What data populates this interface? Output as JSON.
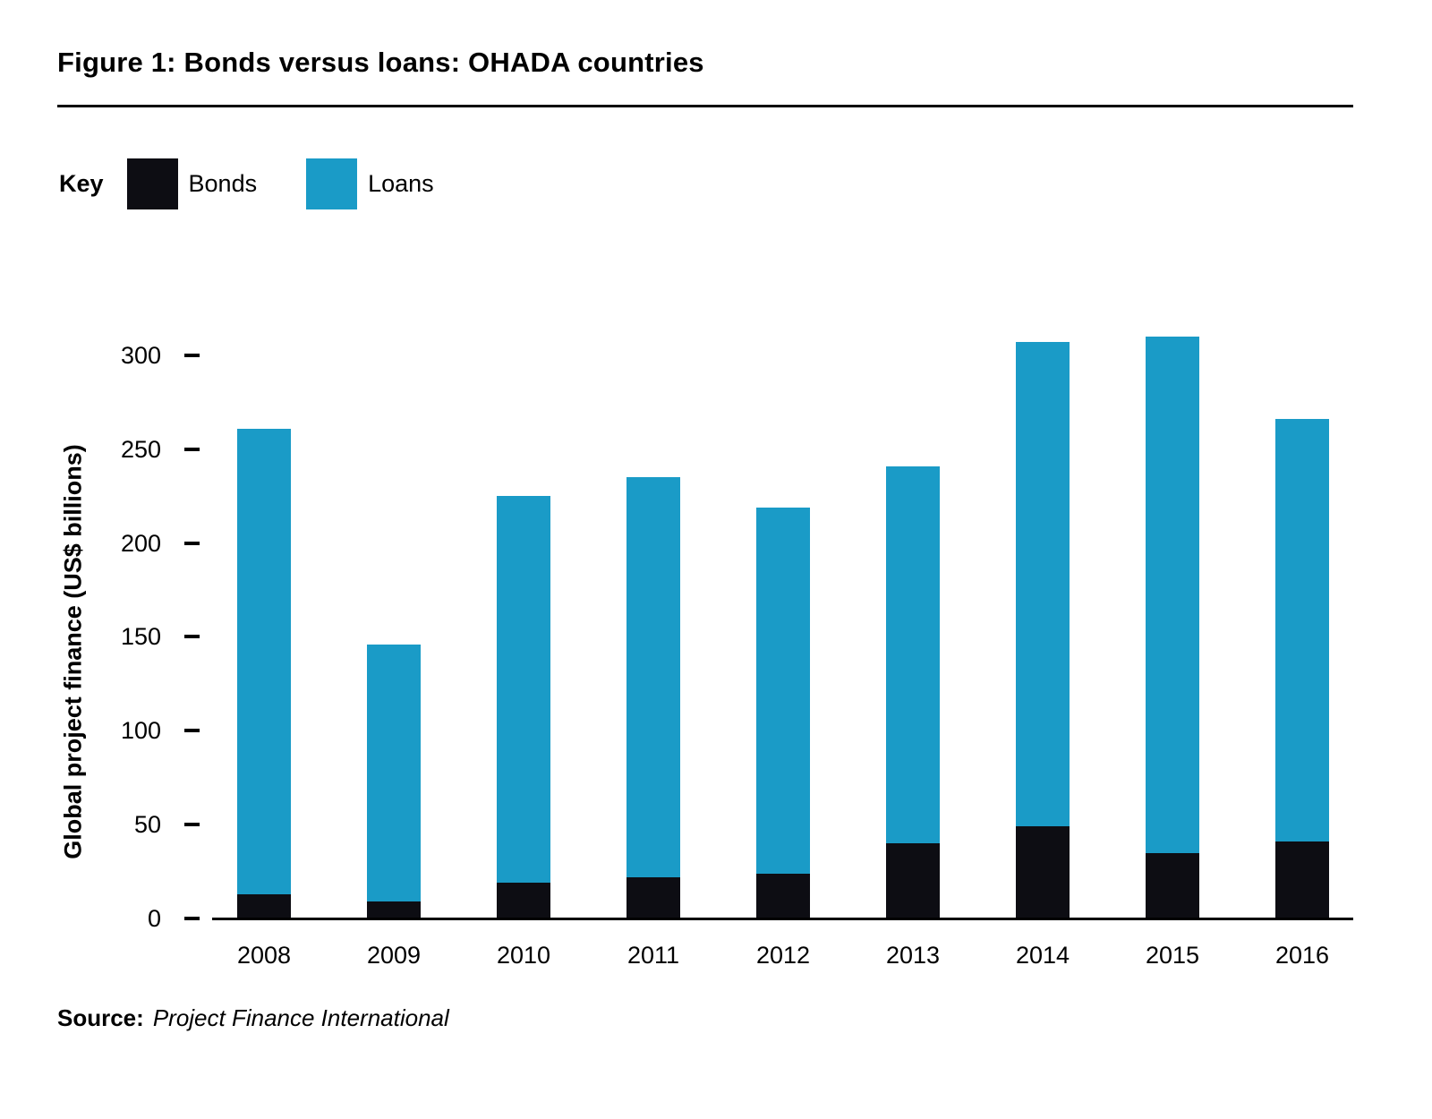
{
  "figure": {
    "title": "Figure 1: Bonds versus loans: OHADA countries",
    "key_label": "Key",
    "source_label": "Source:",
    "source_text": "Project Finance International"
  },
  "chart_data": {
    "type": "bar",
    "stacked": true,
    "title": "Figure 1: Bonds versus loans: OHADA countries",
    "xlabel": "",
    "ylabel": "Global project finance (US$ billions)",
    "categories": [
      "2008",
      "2009",
      "2010",
      "2011",
      "2012",
      "2013",
      "2014",
      "2015",
      "2016"
    ],
    "series": [
      {
        "name": "Bonds",
        "color": "#0d0d13",
        "values": [
          13,
          9,
          19,
          22,
          24,
          40,
          49,
          35,
          41
        ]
      },
      {
        "name": "Loans",
        "color": "#1a9bc7",
        "values": [
          248,
          137,
          206,
          213,
          195,
          201,
          258,
          275,
          225
        ]
      }
    ],
    "totals": [
      261,
      146,
      225,
      235,
      219,
      241,
      307,
      310,
      266
    ],
    "yticks": [
      0,
      50,
      100,
      150,
      200,
      250,
      300
    ],
    "ylim": [
      0,
      320
    ],
    "grid": false,
    "legend_position": "top-left"
  }
}
